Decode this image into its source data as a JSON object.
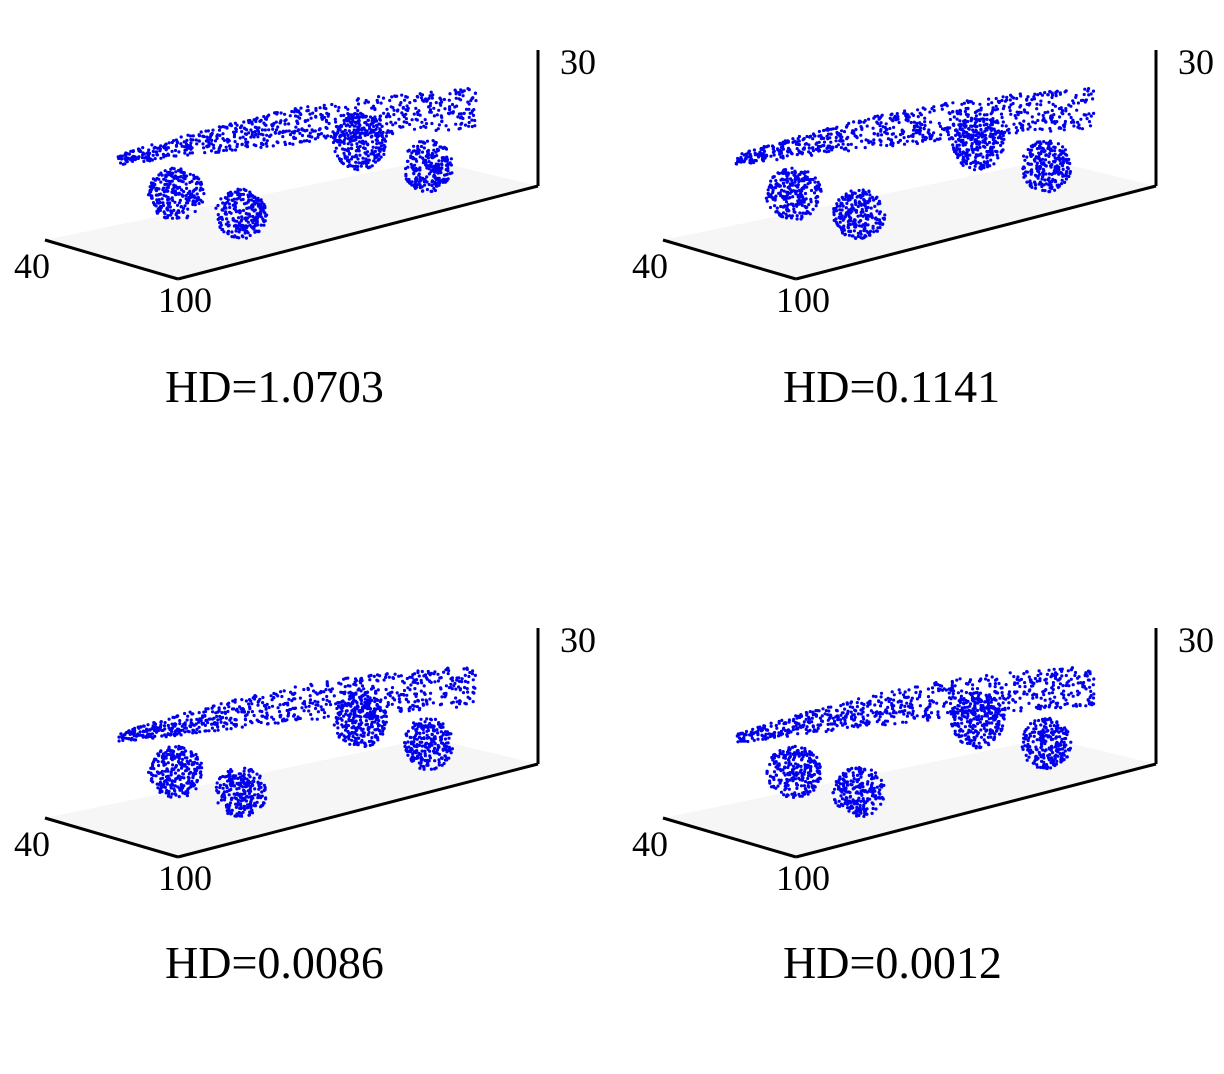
{
  "chart_data": [
    {
      "type": "scatter",
      "title": "HD=1.0703",
      "point_color": "#0000ee",
      "grid": false,
      "axis_tick_labels": {
        "x": "100",
        "y": "40",
        "z": "30"
      },
      "seed": 11
    },
    {
      "type": "scatter",
      "title": "HD=0.1141",
      "point_color": "#0000ee",
      "grid": false,
      "axis_tick_labels": {
        "x": "100",
        "y": "40",
        "z": "30"
      },
      "seed": 23
    },
    {
      "type": "scatter",
      "title": "HD=0.0086",
      "point_color": "#0000ee",
      "grid": false,
      "axis_tick_labels": {
        "x": "100",
        "y": "40",
        "z": "30"
      },
      "seed": 37
    },
    {
      "type": "scatter",
      "title": "HD=0.0012",
      "point_color": "#0000ee",
      "grid": false,
      "axis_tick_labels": {
        "x": "100",
        "y": "40",
        "z": "30"
      },
      "seed": 41
    }
  ]
}
